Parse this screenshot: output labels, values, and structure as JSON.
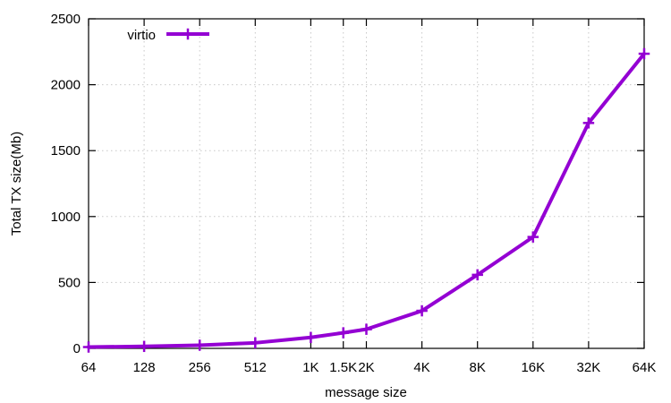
{
  "colors": {
    "series": "#9400d3",
    "grid": "#c8c8c8",
    "frame": "#000000"
  },
  "chart_data": {
    "type": "line",
    "title": "",
    "xlabel": "message size",
    "ylabel": "Total TX size(Mb)",
    "x_scale": "log2",
    "categories": [
      "64",
      "128",
      "256",
      "512",
      "1K",
      "1.5K",
      "2K",
      "4K",
      "8K",
      "16K",
      "32K",
      "64K"
    ],
    "x": [
      64,
      128,
      256,
      512,
      1024,
      1536,
      2048,
      4096,
      8192,
      16384,
      32768,
      65536
    ],
    "ylim": [
      0,
      2500
    ],
    "yticks": [
      0,
      500,
      1000,
      1500,
      2000,
      2500
    ],
    "grid": true,
    "legend_position": "top-left",
    "series": [
      {
        "name": "virtio",
        "values": [
          10,
          15,
          24,
          42,
          83,
          118,
          145,
          285,
          558,
          845,
          1710,
          2235
        ]
      }
    ]
  }
}
